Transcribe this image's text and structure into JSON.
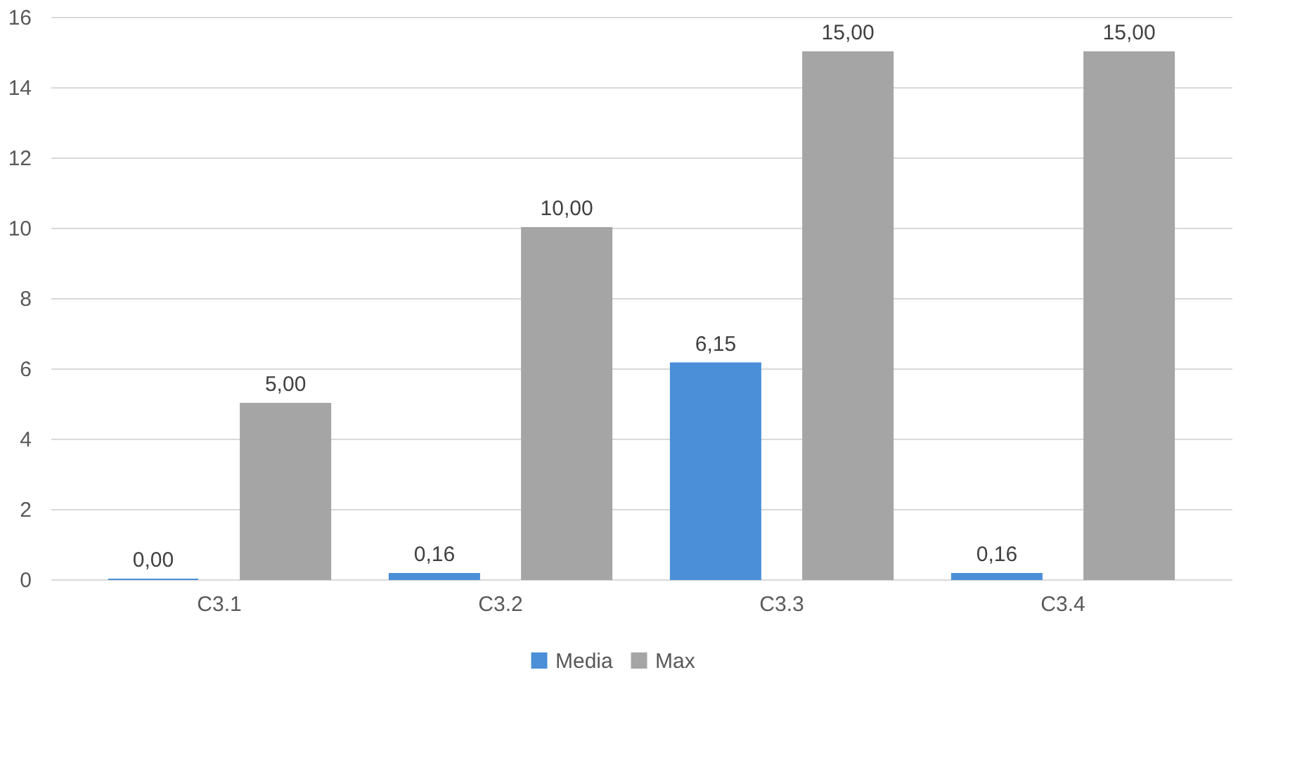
{
  "chart_data": {
    "type": "bar",
    "categories": [
      "C3.1",
      "C3.2",
      "C3.3",
      "C3.4"
    ],
    "series": [
      {
        "name": "Media",
        "color": "#4a8fd8",
        "values": [
          0.0,
          0.16,
          6.15,
          0.16
        ],
        "value_labels": [
          "0,00",
          "0,16",
          "6,15",
          "0,16"
        ]
      },
      {
        "name": "Max",
        "color": "#a5a5a5",
        "values": [
          5.0,
          10.0,
          15.0,
          15.0
        ],
        "value_labels": [
          "5,00",
          "10,00",
          "15,00",
          "15,00"
        ]
      }
    ],
    "ylim": [
      0,
      16
    ],
    "yticks": [
      0,
      2,
      4,
      6,
      8,
      10,
      12,
      14,
      16
    ],
    "grid": "y",
    "legend": "bottom"
  }
}
